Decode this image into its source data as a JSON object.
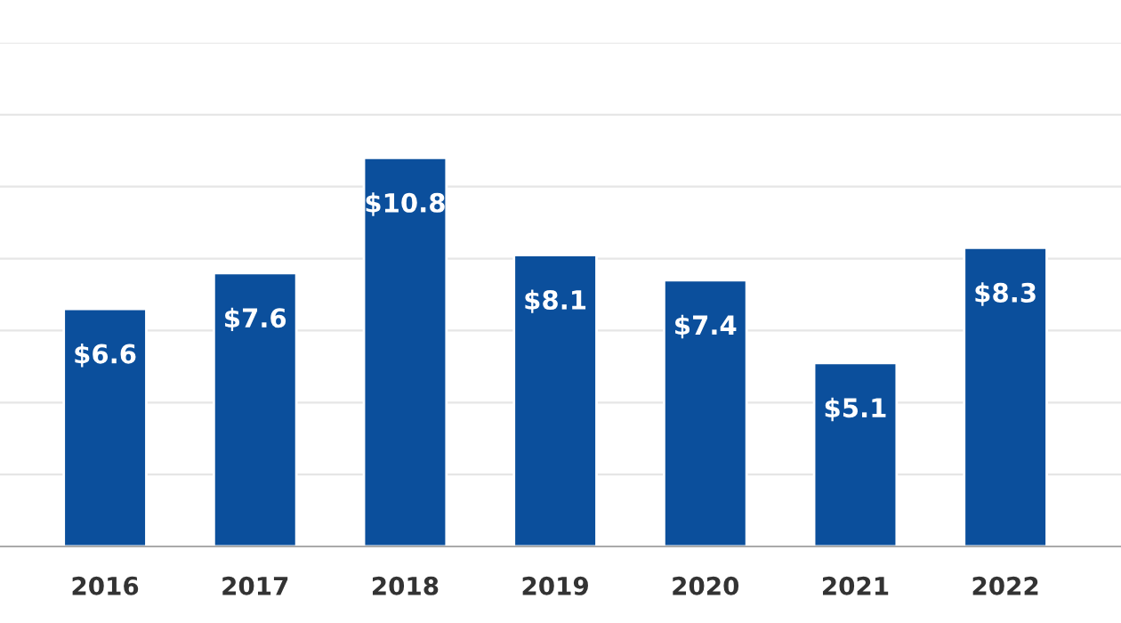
{
  "chart_data": {
    "type": "bar",
    "categories": [
      "2016",
      "2017",
      "2018",
      "2019",
      "2020",
      "2021",
      "2022"
    ],
    "values": [
      6.6,
      7.6,
      10.8,
      8.1,
      7.4,
      5.1,
      8.3
    ],
    "value_labels": [
      "$6.6",
      "$7.6",
      "$10.8",
      "$8.1",
      "$7.4",
      "$5.1",
      "$8.3"
    ],
    "color": "#0b4f9c",
    "ylim": [
      0,
      14
    ],
    "yticks": [
      {
        "value": 0,
        "label": null
      },
      {
        "value": 2,
        "label": null
      },
      {
        "value": 4,
        "label": null
      },
      {
        "value": 6,
        "label": null
      },
      {
        "value": 8,
        "label": null
      },
      {
        "value": 10,
        "label": null
      },
      {
        "value": 12,
        "label": null
      },
      {
        "value": 14,
        "label": null
      }
    ],
    "grid": "y",
    "tick_labels": "x"
  }
}
